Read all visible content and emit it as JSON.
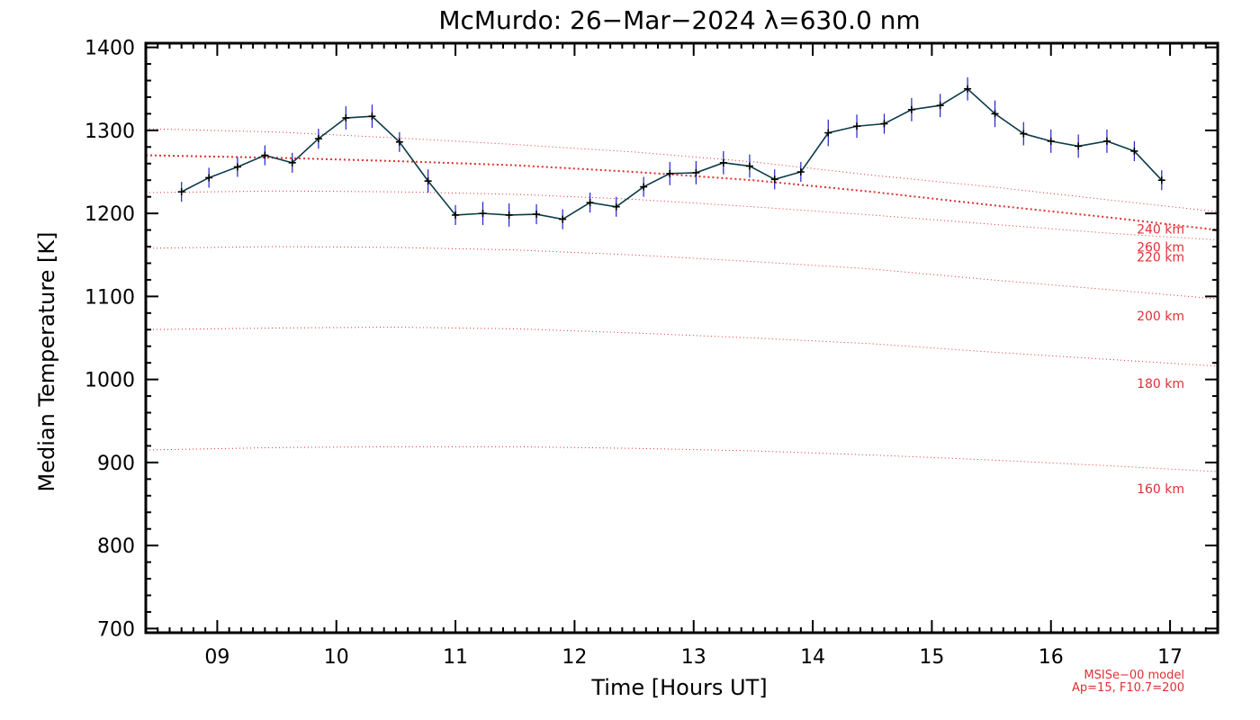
{
  "chart_data": {
    "type": "line",
    "title": "McMurdo: 26−Mar−2024 λ=630.0 nm",
    "xlabel": "Time [Hours UT]",
    "ylabel": "Median Temperature [K]",
    "xlim": [
      8.4,
      17.4
    ],
    "ylim": [
      695,
      1405
    ],
    "x_ticks": [
      9,
      10,
      11,
      12,
      13,
      14,
      15,
      16,
      17
    ],
    "x_tick_labels": [
      "09",
      "10",
      "11",
      "12",
      "13",
      "14",
      "15",
      "16",
      "17"
    ],
    "y_ticks": [
      700,
      800,
      900,
      1000,
      1100,
      1200,
      1300,
      1400
    ],
    "y_tick_labels": [
      "700",
      "800",
      "900",
      "1000",
      "1100",
      "1200",
      "1300",
      "1400"
    ],
    "series": [
      {
        "color": "#0a3a4a",
        "x": [
          8.7,
          8.93,
          9.17,
          9.4,
          9.63,
          9.85,
          10.08,
          10.3,
          10.53,
          10.77,
          11.0,
          11.23,
          11.45,
          11.68,
          11.9,
          12.13,
          12.35,
          12.58,
          12.8,
          13.02,
          13.25,
          13.47,
          13.68,
          13.9,
          14.13,
          14.37,
          14.6,
          14.83,
          15.07,
          15.3,
          15.53,
          15.77,
          16.0,
          16.23,
          16.47,
          16.7,
          16.93
        ],
        "y": [
          1226,
          1243,
          1256,
          1270,
          1261,
          1290,
          1315,
          1317,
          1286,
          1239,
          1198,
          1200,
          1198,
          1199,
          1193,
          1213,
          1208,
          1232,
          1248,
          1249,
          1261,
          1257,
          1241,
          1250,
          1297,
          1305,
          1308,
          1325,
          1330,
          1350,
          1320,
          1296,
          1287,
          1281,
          1287,
          1275,
          1240
        ],
        "errors": [
          12,
          12,
          12,
          12,
          12,
          12,
          14,
          14,
          12,
          14,
          12,
          14,
          14,
          12,
          12,
          12,
          12,
          12,
          14,
          14,
          14,
          14,
          12,
          12,
          16,
          14,
          12,
          14,
          14,
          14,
          16,
          14,
          14,
          14,
          14,
          12,
          12
        ]
      }
    ],
    "model_lines": [
      {
        "label": "260 km",
        "x": [
          8.4,
          9.5,
          10.5,
          11.5,
          12.5,
          13.5,
          14.5,
          15.5,
          16.5,
          17.4
        ],
        "y": [
          1270,
          1267,
          1263,
          1258,
          1250,
          1240,
          1226,
          1210,
          1195,
          1180
        ],
        "emphasis": true
      },
      {
        "label": "240 km",
        "x": [
          8.4,
          9.5,
          10.5,
          11.5,
          12.5,
          13.5,
          14.5,
          15.5,
          16.5,
          17.4
        ],
        "y": [
          1302,
          1298,
          1291,
          1283,
          1274,
          1262,
          1246,
          1232,
          1216,
          1202
        ]
      },
      {
        "label": "220 km",
        "x": [
          8.4,
          9.5,
          10.5,
          11.5,
          12.5,
          13.5,
          14.5,
          15.5,
          16.5,
          17.4
        ],
        "y": [
          1225,
          1227,
          1226,
          1223,
          1217,
          1208,
          1198,
          1187,
          1176,
          1168
        ]
      },
      {
        "label": "200 km",
        "x": [
          8.4,
          9.5,
          10.5,
          11.5,
          12.5,
          13.5,
          14.5,
          15.5,
          16.5,
          17.4
        ],
        "y": [
          1158,
          1160,
          1159,
          1156,
          1150,
          1142,
          1133,
          1120,
          1108,
          1097
        ]
      },
      {
        "label": "180 km",
        "x": [
          8.4,
          9.5,
          10.5,
          11.5,
          12.5,
          13.5,
          14.5,
          15.5,
          16.5,
          17.4
        ],
        "y": [
          1060,
          1062,
          1063,
          1061,
          1056,
          1050,
          1043,
          1033,
          1024,
          1016
        ]
      },
      {
        "label": "160 km",
        "x": [
          8.4,
          9.5,
          10.5,
          11.5,
          12.5,
          13.5,
          14.5,
          15.5,
          16.5,
          17.4
        ],
        "y": [
          915,
          918,
          919,
          919,
          917,
          914,
          909,
          903,
          896,
          889
        ]
      }
    ],
    "model_note_line1": "MSISe−00 model",
    "model_note_line2": "Ap=15, F10.7=200",
    "grid": false,
    "legend": "none",
    "colors": {
      "data_line": "#0a3a4a",
      "error_bar": "#2020d0",
      "marker": "#000000",
      "model_line": "#e03030"
    }
  }
}
